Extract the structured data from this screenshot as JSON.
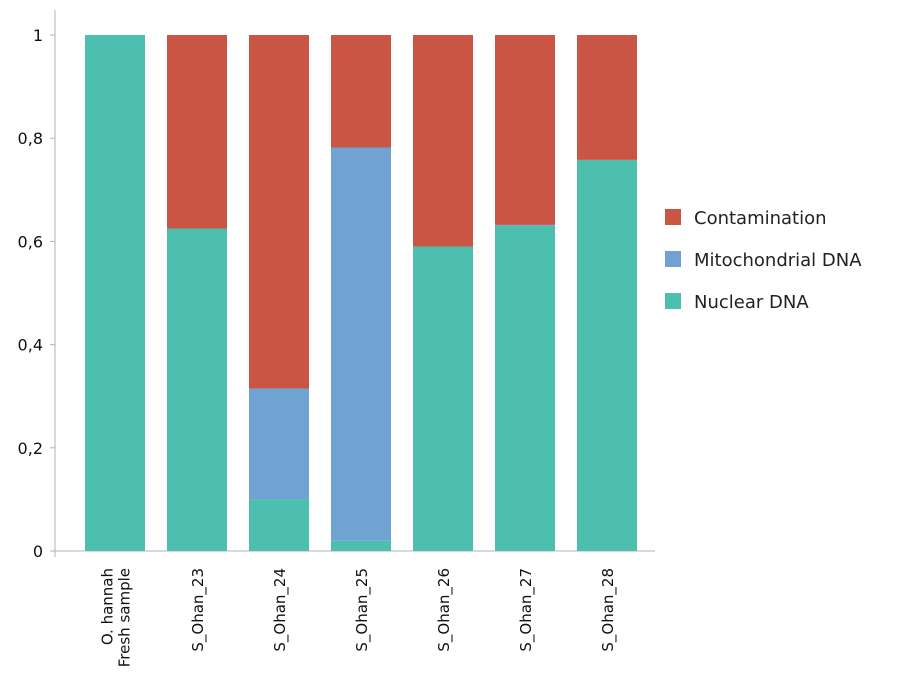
{
  "chart_data": {
    "type": "bar",
    "stacked": true,
    "categories": [
      [
        "O. hannah",
        "Fresh sample"
      ],
      [
        "S_Ohan_23"
      ],
      [
        "S_Ohan_24"
      ],
      [
        "S_Ohan_25"
      ],
      [
        "S_Ohan_26"
      ],
      [
        "S_Ohan_27"
      ],
      [
        "S_Ohan_28"
      ]
    ],
    "series": [
      {
        "name": "Nuclear DNA",
        "color": "#4cbfaf",
        "values": [
          1.0,
          0.625,
          0.1,
          0.02,
          0.59,
          0.63,
          0.758
        ]
      },
      {
        "name": "Mitochondrial DNA",
        "color": "#71a3d2",
        "values": [
          0.0,
          0.0,
          0.215,
          0.762,
          0.0,
          0.002,
          0.0
        ]
      },
      {
        "name": "Contamination",
        "color": "#cb5545",
        "values": [
          0.0,
          0.375,
          0.685,
          0.218,
          0.41,
          0.368,
          0.242
        ]
      }
    ],
    "legend_order": [
      "Contamination",
      "Mitochondrial DNA",
      "Nuclear DNA"
    ],
    "yticks": [
      "0",
      "0,2",
      "0,4",
      "0,6",
      "0,8",
      "1"
    ],
    "ylim": [
      0,
      1
    ],
    "legend_position": "right",
    "grid": false,
    "title": "",
    "xlabel": "",
    "ylabel": ""
  }
}
